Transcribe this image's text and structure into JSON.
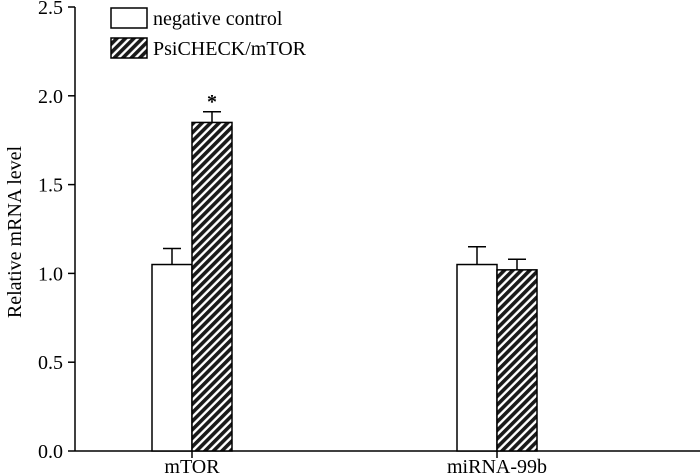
{
  "chart_data": {
    "type": "bar",
    "title": "",
    "xlabel": "",
    "ylabel": "Relative mRNA level",
    "ylim": [
      0,
      2.5
    ],
    "yticks": [
      "0.0",
      "0.5",
      "1.0",
      "1.5",
      "2.0",
      "2.5"
    ],
    "categories": [
      "mTOR",
      "miRNA-99b"
    ],
    "series": [
      {
        "name": "negative control",
        "pattern": "open",
        "values": [
          1.05,
          1.05
        ],
        "errors": [
          0.09,
          0.1
        ]
      },
      {
        "name": "PsiCHECK/mTOR",
        "pattern": "hatched",
        "values": [
          1.85,
          1.02
        ],
        "errors": [
          0.06,
          0.06
        ]
      }
    ],
    "annotations": [
      {
        "category": "mTOR",
        "series": "PsiCHECK/mTOR",
        "text": "*"
      }
    ],
    "legend_position": "top-left",
    "grid": false
  }
}
